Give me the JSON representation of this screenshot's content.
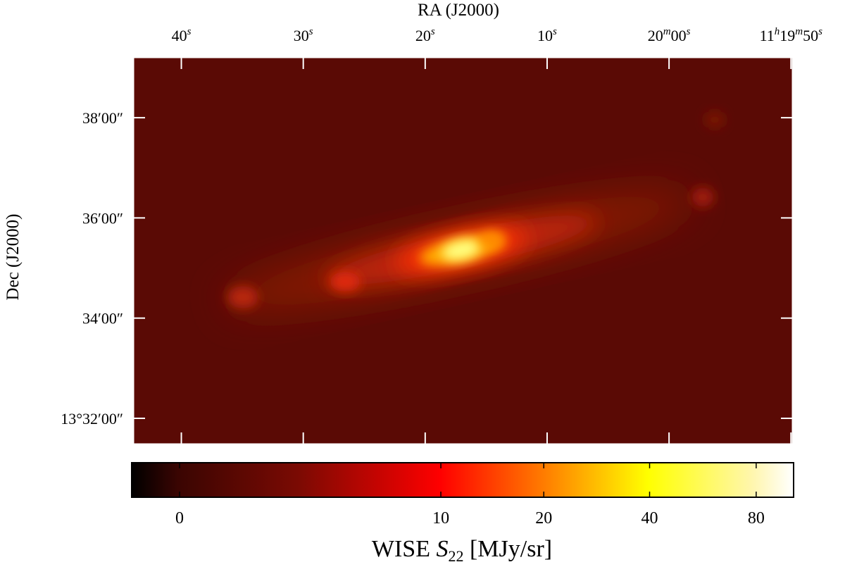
{
  "chart_data": {
    "type": "image",
    "x_label": "RA (J2000)",
    "y_label": "Dec (J2000)",
    "xlim": [
      40843.9,
      40789.9
    ],
    "xticks": [
      {
        "value": 40840,
        "label": "40s"
      },
      {
        "value": 40830,
        "label": "30s"
      },
      {
        "value": 40820,
        "label": "20s"
      },
      {
        "value": 40810,
        "label": "10s"
      },
      {
        "value": 40800,
        "label": "20m00s"
      },
      {
        "value": 40790,
        "label": "11h19m50s"
      }
    ],
    "ylim": [
      48689.6,
      49151.8
    ],
    "yticks": [
      {
        "value": 48720,
        "label": "13°32′00″"
      },
      {
        "value": 48840,
        "label": "34′00″"
      },
      {
        "value": 48960,
        "label": "36′00″"
      },
      {
        "value": 49080,
        "label": "38′00″"
      }
    ],
    "colorbar": {
      "label": "WISE S22 [MJy/sr]",
      "lim": [
        -1.2,
        102
      ],
      "ticks": [
        0,
        10,
        20,
        40,
        80
      ],
      "stretch": "asinh"
    }
  }
}
